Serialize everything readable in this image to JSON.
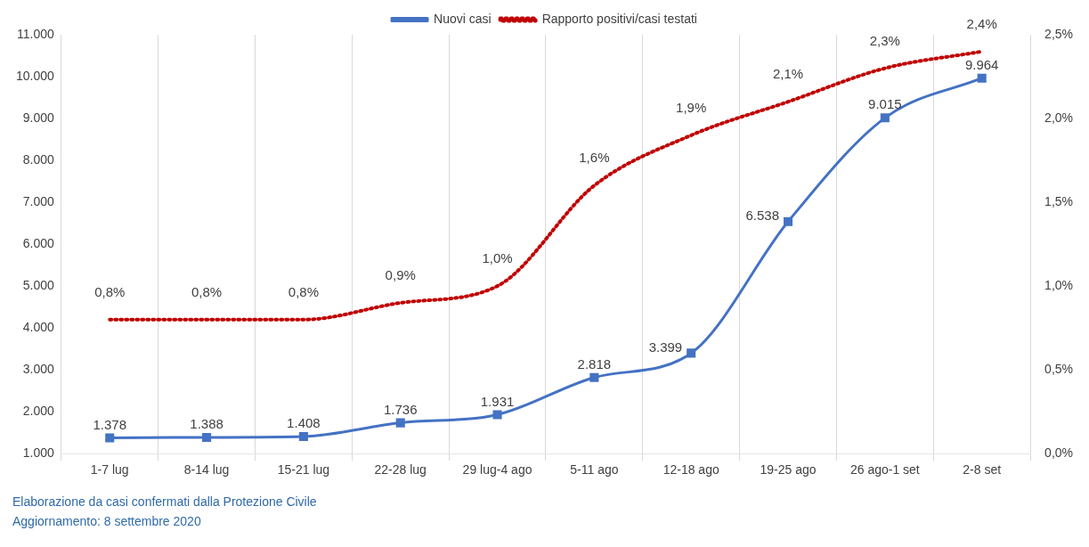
{
  "chart_data": {
    "type": "line",
    "categories": [
      "1-7 lug",
      "8-14 lug",
      "15-21 lug",
      "22-28 lug",
      "29 lug-4 ago",
      "5-11 ago",
      "12-18 ago",
      "19-25 ago",
      "26 ago-1 set",
      "2-8 set"
    ],
    "series": [
      {
        "name": "Nuovi casi",
        "color": "#4472c4",
        "marker": "square",
        "line_style": "solid",
        "values": [
          1378,
          1388,
          1408,
          1736,
          1931,
          2818,
          3399,
          6538,
          9015,
          9964
        ],
        "value_labels": [
          "1.378",
          "1.388",
          "1.408",
          "1.736",
          "1.931",
          "2.818",
          "3.399",
          "6.538",
          "9.015",
          "9.964"
        ]
      },
      {
        "name": "Rapporto positivi/casi testati",
        "color": "#c00000",
        "axis": "y2",
        "marker": "none",
        "line_style": "dotted",
        "values": [
          0.8,
          0.8,
          0.8,
          0.9,
          1.0,
          1.6,
          1.9,
          2.1,
          2.3,
          2.4
        ],
        "value_labels": [
          "0,8%",
          "0,8%",
          "0,8%",
          "0,9%",
          "1,0%",
          "1,6%",
          "1,9%",
          "2,1%",
          "2,3%",
          "2,4%"
        ]
      }
    ],
    "ylim": [
      1000,
      11000
    ],
    "yticks": [
      {
        "value": 1000,
        "label": "1.000"
      },
      {
        "value": 2000,
        "label": "2.000"
      },
      {
        "value": 3000,
        "label": "3.000"
      },
      {
        "value": 4000,
        "label": "4.000"
      },
      {
        "value": 5000,
        "label": "5.000"
      },
      {
        "value": 6000,
        "label": "6.000"
      },
      {
        "value": 7000,
        "label": "7.000"
      },
      {
        "value": 8000,
        "label": "8.000"
      },
      {
        "value": 9000,
        "label": "9.000"
      },
      {
        "value": 10000,
        "label": "10.000"
      },
      {
        "value": 11000,
        "label": "11.000"
      }
    ],
    "y2lim": [
      0,
      2.5
    ],
    "y2ticks": [
      {
        "value": 0,
        "label": "0,0%"
      },
      {
        "value": 0.5,
        "label": "0,5%"
      },
      {
        "value": 1,
        "label": "1,0%"
      },
      {
        "value": 1.5,
        "label": "1,5%"
      },
      {
        "value": 2,
        "label": "2,0%"
      },
      {
        "value": 2.5,
        "label": "2,5%"
      }
    ],
    "grid": "x",
    "legend": "top",
    "annotations": [
      "Elaborazione da casi confermati dalla Protezione Civile",
      "Aggiornamento: 8 settembre 2020"
    ]
  }
}
